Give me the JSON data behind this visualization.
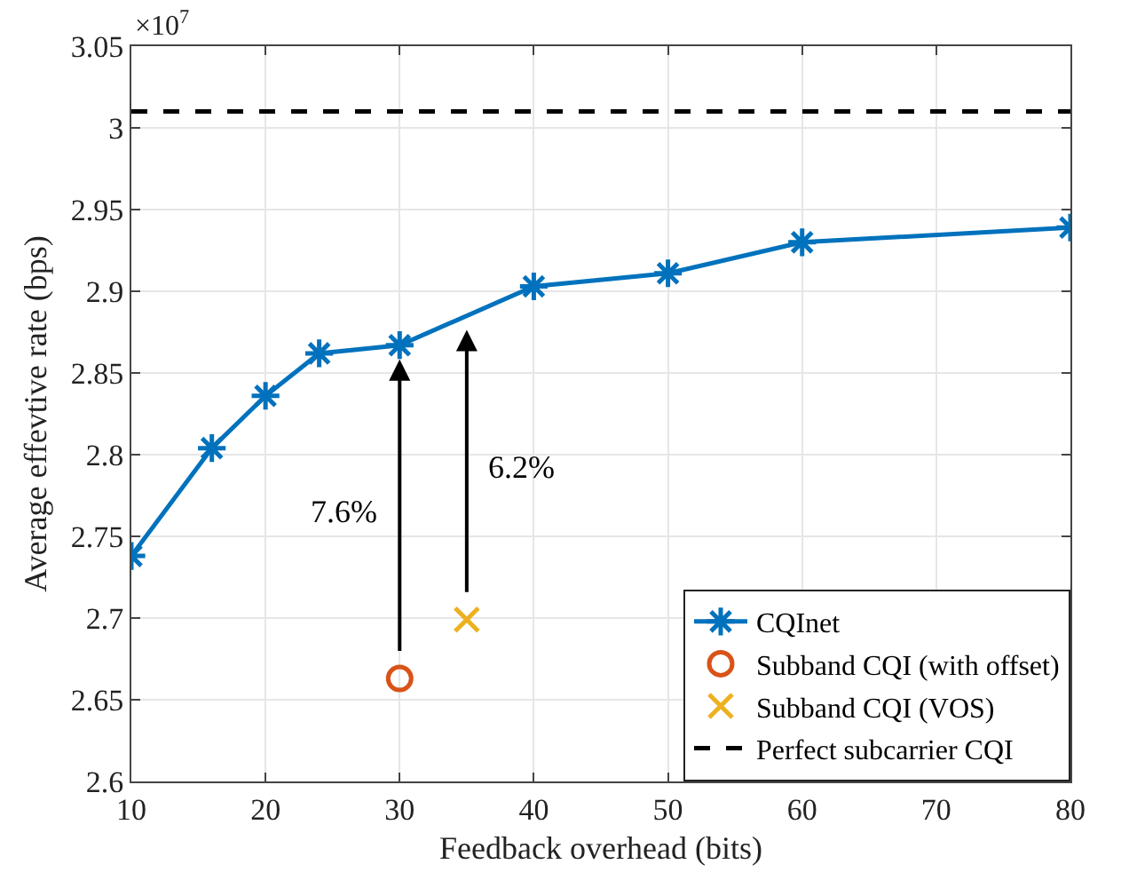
{
  "chart_data": {
    "type": "line",
    "xlabel": "Feedback overhead (bits)",
    "ylabel": "Average effevtive rate (bps)",
    "xlim": [
      10,
      80
    ],
    "xticks": [
      10,
      20,
      30,
      40,
      50,
      60,
      70,
      80
    ],
    "ylim": [
      2.6,
      3.05
    ],
    "yticks": [
      2.6,
      2.65,
      2.7,
      2.75,
      2.8,
      2.85,
      2.9,
      2.95,
      3,
      3.05
    ],
    "grid": true,
    "legend": "bottom right",
    "series": [
      {
        "name": "CQInet",
        "color": "#0072bd",
        "marker": "cross",
        "line_style": "solid",
        "x": [
          10,
          16,
          20,
          24,
          30,
          40,
          50,
          60,
          80
        ],
        "values": [
          2.738,
          2.804,
          2.836,
          2.862,
          2.867,
          2.903,
          2.911,
          2.93,
          2.939
        ]
      },
      {
        "name": "Subband CQI (with offset)",
        "type": "scatter",
        "color": "#d95319",
        "marker": "circle",
        "x": [
          30
        ],
        "values": [
          2.663
        ]
      },
      {
        "name": "Subband CQI (VOS)",
        "type": "scatter",
        "color": "#edb120",
        "marker": "cross",
        "x": [
          35
        ],
        "values": [
          2.699
        ]
      }
    ],
    "ref_lines": [
      {
        "axis": "y",
        "value": 3.01,
        "label": "Perfect subcarrier CQI",
        "color": "#000000",
        "line_style": "dashed"
      }
    ],
    "annotations": [
      "7.6%",
      "6.2%",
      "×10$^{7}$"
    ]
  }
}
